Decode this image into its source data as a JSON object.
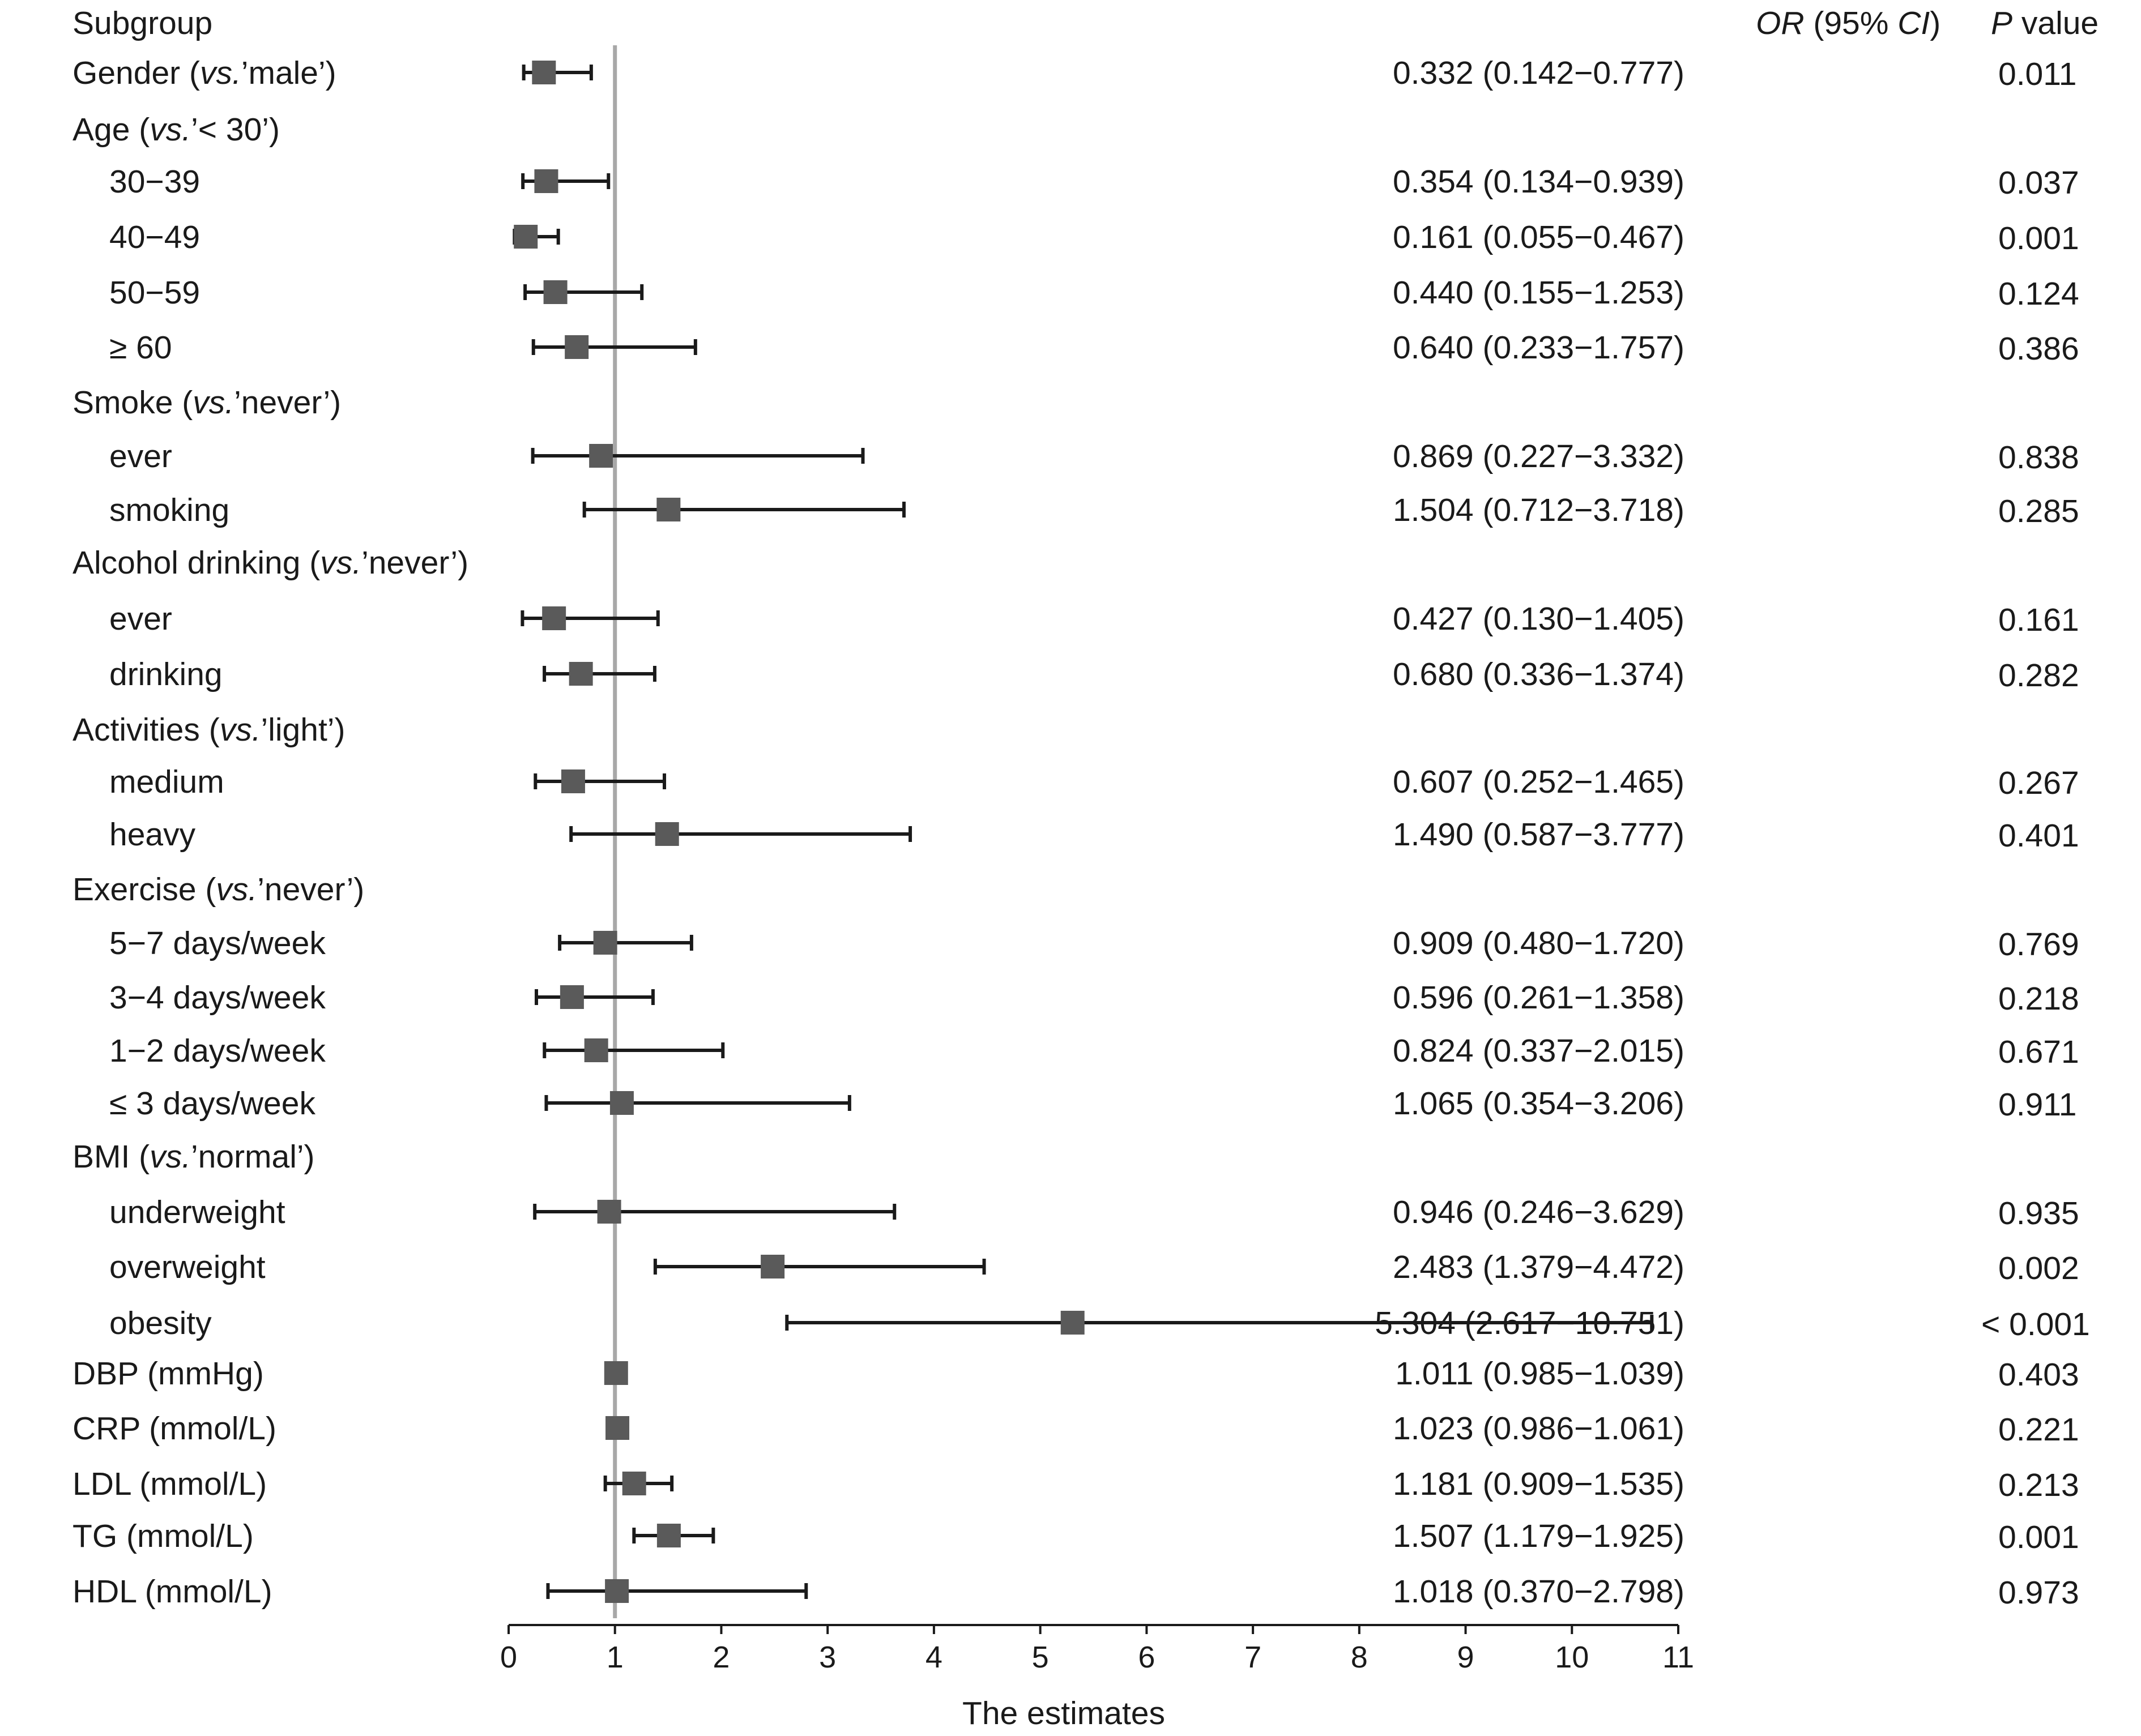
{
  "header": {
    "subgroup": "Subgroup",
    "or_ci_or": "OR",
    "or_ci_rest": " (95% ",
    "or_ci_ci": "CI",
    "or_ci_close": ")",
    "p_p": "P",
    "p_rest": " value"
  },
  "colors": {
    "marker": "#5a5a5a",
    "reference_line": "#a8a8a8",
    "whisker": "#1a1a1a"
  },
  "chart_data": {
    "type": "forest",
    "xlabel": "The estimates",
    "xlim": [
      0,
      11
    ],
    "xticks": [
      0,
      1,
      2,
      3,
      4,
      5,
      6,
      7,
      8,
      9,
      10,
      11
    ],
    "reference_value": 1,
    "rows": [
      {
        "label": "Gender (",
        "label_italic": "vs.",
        "label_rest": "’male’)",
        "indent": false,
        "or": 0.332,
        "lo": 0.142,
        "hi": 0.777,
        "text": "0.332 (0.142−0.777)",
        "p": "0.011"
      },
      {
        "label": "Age (",
        "label_italic": "vs.",
        "label_rest": "’< 30’)",
        "indent": false,
        "header": true
      },
      {
        "label": "30−39",
        "indent": true,
        "or": 0.354,
        "lo": 0.134,
        "hi": 0.939,
        "text": "0.354 (0.134−0.939)",
        "p": "0.037"
      },
      {
        "label": "40−49",
        "indent": true,
        "or": 0.161,
        "lo": 0.055,
        "hi": 0.467,
        "text": "0.161 (0.055−0.467)",
        "p": "0.001"
      },
      {
        "label": "50−59",
        "indent": true,
        "or": 0.44,
        "lo": 0.155,
        "hi": 1.253,
        "text": "0.440 (0.155−1.253)",
        "p": "0.124"
      },
      {
        "label": "≥ 60",
        "indent": true,
        "or": 0.64,
        "lo": 0.233,
        "hi": 1.757,
        "text": "0.640 (0.233−1.757)",
        "p": "0.386"
      },
      {
        "label": "Smoke (",
        "label_italic": "vs.",
        "label_rest": "’never’)",
        "indent": false,
        "header": true
      },
      {
        "label": "ever",
        "indent": true,
        "or": 0.869,
        "lo": 0.227,
        "hi": 3.332,
        "text": "0.869 (0.227−3.332)",
        "p": "0.838"
      },
      {
        "label": "smoking",
        "indent": true,
        "or": 1.504,
        "lo": 0.712,
        "hi": 3.718,
        "text": "1.504 (0.712−3.718)",
        "p": "0.285"
      },
      {
        "label": "Alcohol drinking (",
        "label_italic": "vs.",
        "label_rest": "’never’)",
        "indent": false,
        "header": true
      },
      {
        "label": "ever",
        "indent": true,
        "or": 0.427,
        "lo": 0.13,
        "hi": 1.405,
        "text": "0.427 (0.130−1.405)",
        "p": "0.161"
      },
      {
        "label": "drinking",
        "indent": true,
        "or": 0.68,
        "lo": 0.336,
        "hi": 1.374,
        "text": "0.680 (0.336−1.374)",
        "p": "0.282"
      },
      {
        "label": "Activities (",
        "label_italic": "vs.",
        "label_rest": "’light’)",
        "indent": false,
        "header": true
      },
      {
        "label": "medium",
        "indent": true,
        "or": 0.607,
        "lo": 0.252,
        "hi": 1.465,
        "text": "0.607 (0.252−1.465)",
        "p": "0.267"
      },
      {
        "label": "heavy",
        "indent": true,
        "or": 1.49,
        "lo": 0.587,
        "hi": 3.777,
        "text": "1.490 (0.587−3.777)",
        "p": "0.401"
      },
      {
        "label": "Exercise (",
        "label_italic": "vs.",
        "label_rest": "’never’)",
        "indent": false,
        "header": true
      },
      {
        "label": "5−7 days/week",
        "indent": true,
        "or": 0.909,
        "lo": 0.48,
        "hi": 1.72,
        "text": "0.909 (0.480−1.720)",
        "p": "0.769"
      },
      {
        "label": "3−4 days/week",
        "indent": true,
        "or": 0.596,
        "lo": 0.261,
        "hi": 1.358,
        "text": "0.596 (0.261−1.358)",
        "p": "0.218"
      },
      {
        "label": "1−2 days/week",
        "indent": true,
        "or": 0.824,
        "lo": 0.337,
        "hi": 2.015,
        "text": "0.824 (0.337−2.015)",
        "p": "0.671"
      },
      {
        "label": "≤ 3 days/week",
        "indent": true,
        "or": 1.065,
        "lo": 0.354,
        "hi": 3.206,
        "text": "1.065 (0.354−3.206)",
        "p": "0.911"
      },
      {
        "label": "BMI (",
        "label_italic": "vs.",
        "label_rest": "’normal’)",
        "indent": false,
        "header": true
      },
      {
        "label": "underweight",
        "indent": true,
        "or": 0.946,
        "lo": 0.246,
        "hi": 3.629,
        "text": "0.946 (0.246−3.629)",
        "p": "0.935"
      },
      {
        "label": "overweight",
        "indent": true,
        "or": 2.483,
        "lo": 1.379,
        "hi": 4.472,
        "text": "2.483 (1.379−4.472)",
        "p": "0.002"
      },
      {
        "label": "obesity",
        "indent": true,
        "or": 5.304,
        "lo": 2.617,
        "hi": 10.751,
        "text": "5.304 (2.617−10.751)",
        "p": "< 0.001"
      },
      {
        "label": "DBP (mmHg)",
        "indent": false,
        "or": 1.011,
        "lo": 0.985,
        "hi": 1.039,
        "text": "1.011 (0.985−1.039)",
        "p": "0.403"
      },
      {
        "label": "CRP (mmol/L)",
        "indent": false,
        "or": 1.023,
        "lo": 0.986,
        "hi": 1.061,
        "text": "1.023 (0.986−1.061)",
        "p": "0.221"
      },
      {
        "label": "LDL (mmol/L)",
        "indent": false,
        "or": 1.181,
        "lo": 0.909,
        "hi": 1.535,
        "text": "1.181 (0.909−1.535)",
        "p": "0.213"
      },
      {
        "label": "TG (mmol/L)",
        "indent": false,
        "or": 1.507,
        "lo": 1.179,
        "hi": 1.925,
        "text": "1.507 (1.179−1.925)",
        "p": "0.001"
      },
      {
        "label": "HDL (mmol/L)",
        "indent": false,
        "or": 1.018,
        "lo": 0.37,
        "hi": 2.798,
        "text": "1.018 (0.370−2.798)",
        "p": "0.973"
      }
    ]
  }
}
